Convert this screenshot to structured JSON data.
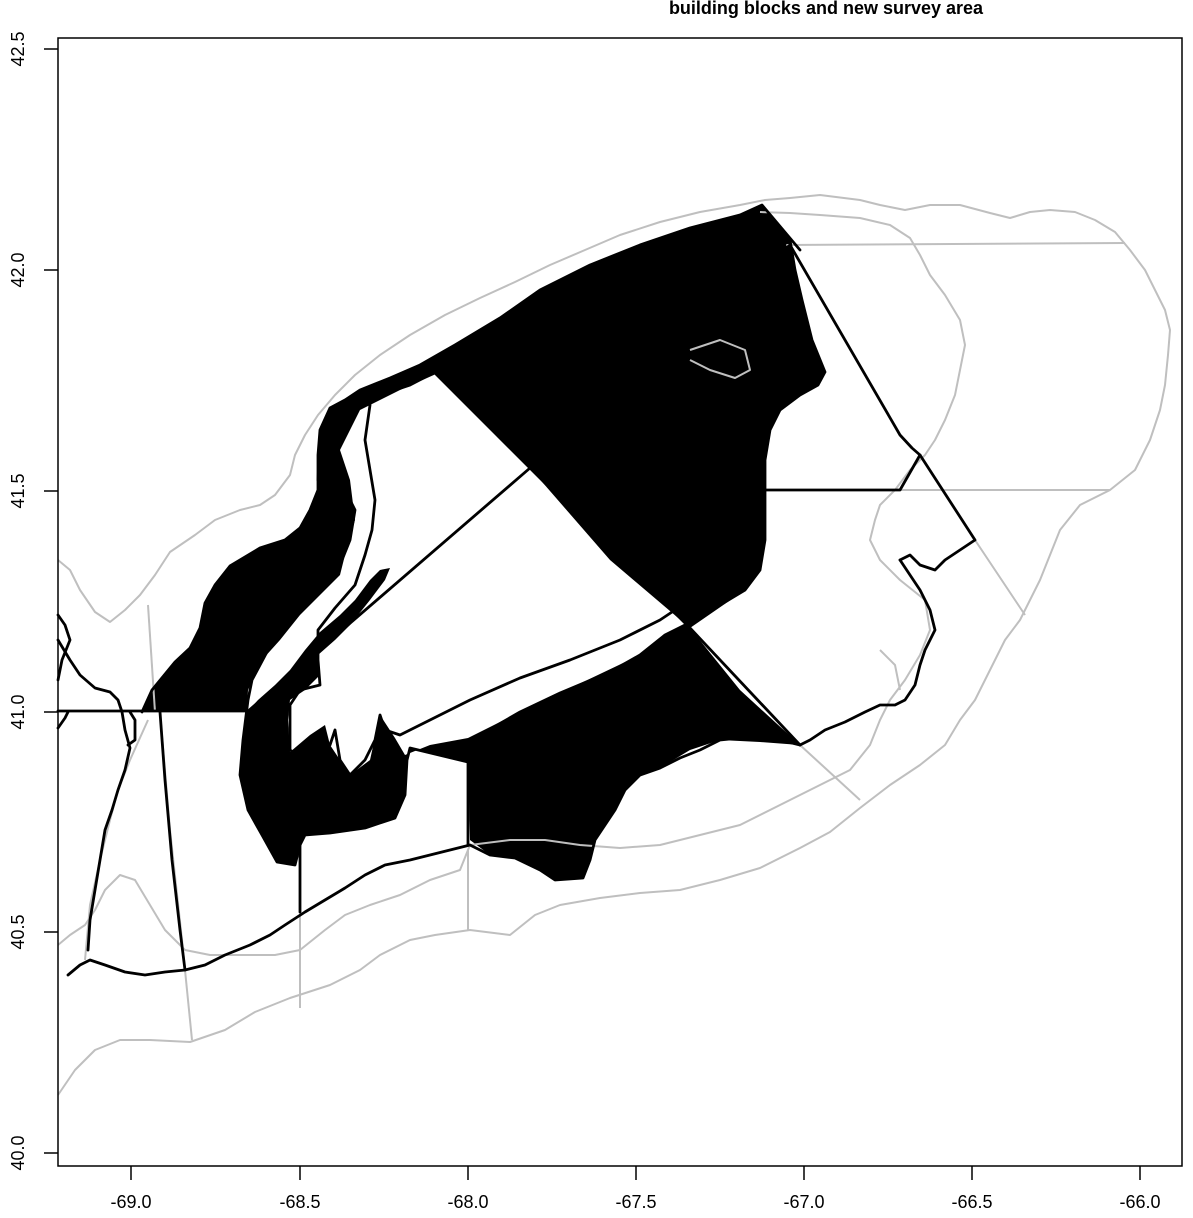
{
  "title": "building blocks and new survey area",
  "colors": {
    "survey_fill": "#ffc0cb",
    "black_line": "#000000",
    "gray_line": "#bfbfbf",
    "background": "#ffffff"
  },
  "chart_data": {
    "type": "map",
    "title": "building blocks and new survey area",
    "xlabel": "",
    "ylabel": "",
    "xlim": [
      -69.25,
      -65.9
    ],
    "ylim": [
      39.95,
      42.55
    ],
    "x_ticks": [
      -69.0,
      -68.5,
      -68.0,
      -67.5,
      -67.0,
      -66.5,
      -66.0
    ],
    "y_ticks": [
      40.0,
      40.5,
      41.0,
      41.5,
      42.0,
      42.5
    ],
    "x_tick_labels": [
      "-69.0",
      "-68.5",
      "-68.0",
      "-67.5",
      "-67.0",
      "-66.5",
      "-66.0"
    ],
    "y_tick_labels": [
      "40.0",
      "40.5",
      "41.0",
      "41.5",
      "42.0",
      "42.5"
    ],
    "grid": false,
    "layers": [
      {
        "name": "",
        "role": "survey-area-fill",
        "style": "fill",
        "color": "#ffc0cb",
        "points": [
          [
            -68.95,
            41.0
          ],
          [
            -68.9,
            41.08
          ],
          [
            -68.83,
            41.13
          ],
          [
            -68.8,
            41.2
          ],
          [
            -68.75,
            41.25
          ],
          [
            -68.72,
            41.3
          ],
          [
            -68.65,
            41.36
          ],
          [
            -68.6,
            41.4
          ],
          [
            -68.53,
            41.43
          ],
          [
            -68.45,
            41.45
          ],
          [
            -68.42,
            41.48
          ],
          [
            -68.38,
            41.53
          ],
          [
            -68.35,
            41.57
          ],
          [
            -68.35,
            41.65
          ],
          [
            -68.3,
            41.68
          ],
          [
            -68.2,
            41.72
          ],
          [
            -68.1,
            41.77
          ],
          [
            -68.0,
            41.81
          ],
          [
            -67.8,
            41.9
          ],
          [
            -67.6,
            41.98
          ],
          [
            -67.4,
            42.05
          ],
          [
            -67.25,
            42.1
          ],
          [
            -67.14,
            42.15
          ],
          [
            -67.05,
            42.05
          ],
          [
            -67.02,
            41.95
          ],
          [
            -66.98,
            41.85
          ],
          [
            -66.95,
            41.78
          ],
          [
            -67.0,
            41.73
          ],
          [
            -67.05,
            41.68
          ],
          [
            -67.12,
            41.62
          ],
          [
            -67.15,
            41.55
          ],
          [
            -67.15,
            41.45
          ],
          [
            -67.15,
            41.37
          ],
          [
            -67.22,
            41.3
          ],
          [
            -67.32,
            41.24
          ],
          [
            -67.42,
            41.2
          ],
          [
            -67.5,
            41.17
          ],
          [
            -67.58,
            41.13
          ],
          [
            -67.68,
            41.07
          ],
          [
            -67.78,
            41.02
          ],
          [
            -67.85,
            40.98
          ],
          [
            -67.92,
            40.92
          ],
          [
            -67.99,
            40.89
          ],
          [
            -68.0,
            40.76
          ],
          [
            -68.0,
            40.68
          ],
          [
            -67.92,
            40.67
          ],
          [
            -67.85,
            40.65
          ],
          [
            -67.8,
            40.62
          ],
          [
            -67.73,
            40.61
          ],
          [
            -67.68,
            40.63
          ],
          [
            -67.65,
            40.7
          ],
          [
            -67.6,
            40.78
          ],
          [
            -67.5,
            40.84
          ],
          [
            -67.4,
            40.88
          ],
          [
            -67.3,
            40.91
          ],
          [
            -67.1,
            40.93
          ],
          [
            -67.02,
            40.93
          ],
          [
            -67.2,
            41.05
          ],
          [
            -67.33,
            41.15
          ],
          [
            -67.45,
            41.22
          ],
          [
            -67.6,
            41.35
          ],
          [
            -67.82,
            41.55
          ],
          [
            -68.0,
            41.68
          ],
          [
            -68.1,
            41.77
          ],
          [
            -68.2,
            41.72
          ],
          [
            -68.3,
            41.68
          ],
          [
            -68.35,
            41.65
          ],
          [
            -68.38,
            41.55
          ],
          [
            -68.43,
            41.45
          ],
          [
            -68.52,
            41.35
          ],
          [
            -68.6,
            41.27
          ],
          [
            -68.68,
            41.1
          ],
          [
            -68.7,
            41.0
          ],
          [
            -68.68,
            40.85
          ],
          [
            -68.63,
            40.75
          ],
          [
            -68.58,
            40.68
          ],
          [
            -68.52,
            40.63
          ],
          [
            -68.5,
            40.65
          ],
          [
            -68.45,
            40.7
          ],
          [
            -68.38,
            40.72
          ],
          [
            -68.3,
            40.75
          ],
          [
            -68.2,
            40.78
          ],
          [
            -68.13,
            40.82
          ],
          [
            -68.12,
            40.9
          ],
          [
            -68.05,
            40.93
          ],
          [
            -67.99,
            40.89
          ],
          [
            -68.0,
            40.76
          ],
          [
            -67.99,
            40.68
          ],
          [
            -67.8,
            40.62
          ],
          [
            -67.72,
            40.62
          ],
          [
            -67.5,
            40.84
          ],
          [
            -67.3,
            40.91
          ],
          [
            -67.02,
            40.93
          ],
          [
            -67.25,
            41.1
          ],
          [
            -67.42,
            41.2
          ],
          [
            -67.62,
            41.37
          ],
          [
            -67.85,
            41.55
          ],
          [
            -68.15,
            41.78
          ],
          [
            -68.3,
            41.7
          ],
          [
            -68.38,
            41.55
          ],
          [
            -68.5,
            41.38
          ],
          [
            -68.62,
            41.25
          ],
          [
            -68.7,
            41.02
          ],
          [
            -68.95,
            41.0
          ]
        ]
      }
    ]
  }
}
